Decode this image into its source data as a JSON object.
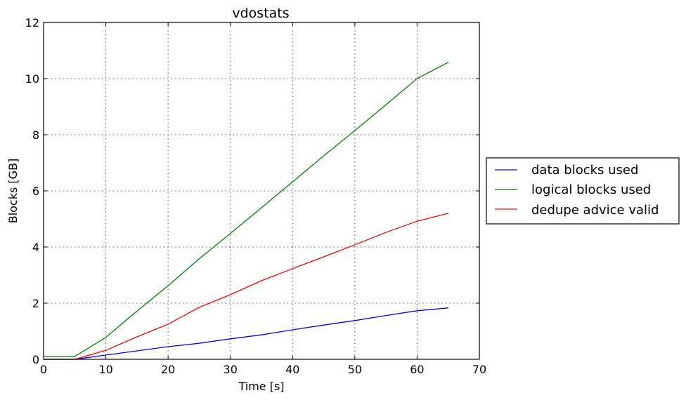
{
  "chart_data": {
    "type": "line",
    "title": "vdostats",
    "xlabel": "Time [s]",
    "ylabel": "Blocks [GB]",
    "xlim": [
      0,
      70
    ],
    "ylim": [
      0,
      12
    ],
    "xticks": [
      0,
      10,
      20,
      30,
      40,
      50,
      60,
      70
    ],
    "yticks": [
      0,
      2,
      4,
      6,
      8,
      10,
      12
    ],
    "grid": true,
    "legend_position": "outside-right",
    "x": [
      0,
      5,
      10,
      15,
      20,
      25,
      30,
      35,
      40,
      45,
      50,
      55,
      60,
      65
    ],
    "series": [
      {
        "name": "data blocks used",
        "color": "#0000ff",
        "values": [
          0.0,
          0.0,
          0.15,
          0.3,
          0.45,
          0.57,
          0.73,
          0.87,
          1.05,
          1.22,
          1.38,
          1.56,
          1.73,
          1.83
        ]
      },
      {
        "name": "logical blocks used",
        "color": "#008000",
        "values": [
          0.1,
          0.1,
          0.78,
          1.72,
          2.62,
          3.58,
          4.48,
          5.4,
          6.32,
          7.25,
          8.15,
          9.07,
          10.0,
          10.58
        ]
      },
      {
        "name": "dedupe advice valid",
        "color": "#ff0000",
        "values": [
          0.0,
          0.0,
          0.32,
          0.8,
          1.25,
          1.85,
          2.3,
          2.8,
          3.23,
          3.65,
          4.08,
          4.52,
          4.92,
          5.2
        ]
      }
    ]
  }
}
